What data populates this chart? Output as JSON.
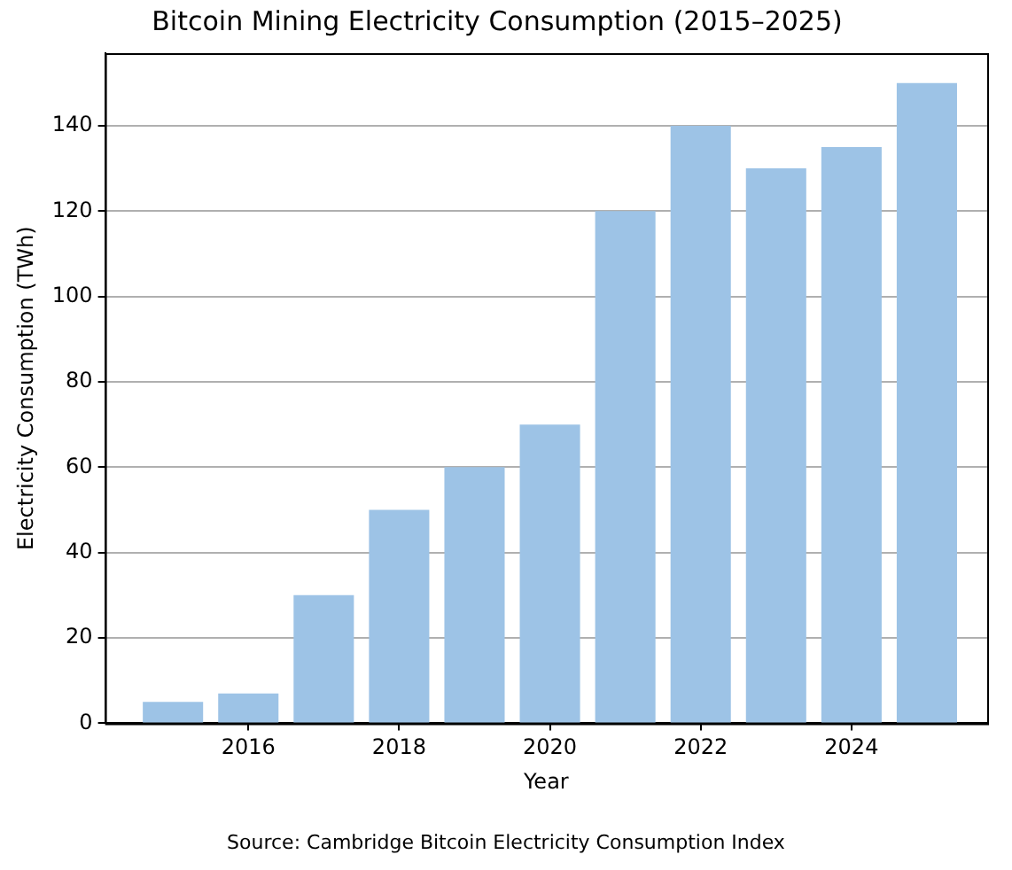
{
  "chart_data": {
    "type": "bar",
    "title": "Bitcoin Mining Electricity Consumption (2015–2025)",
    "xlabel": "Year",
    "ylabel": "Electricity Consumption (TWh)",
    "x": [
      2015,
      2016,
      2017,
      2018,
      2019,
      2020,
      2021,
      2022,
      2023,
      2024,
      2025
    ],
    "values": [
      5,
      7,
      30,
      50,
      60,
      70,
      120,
      140,
      130,
      135,
      150
    ],
    "color": "#9dc3e6",
    "xlim": [
      2014.1,
      2025.8
    ],
    "xticks": [
      2016,
      2018,
      2020,
      2022,
      2024
    ],
    "ylim": [
      0,
      157
    ],
    "yticks": [
      0,
      20,
      40,
      60,
      80,
      100,
      120,
      140
    ],
    "grid": "y",
    "legend": false,
    "annotations": [
      "Source: Cambridge Bitcoin Electricity Consumption Index"
    ]
  }
}
